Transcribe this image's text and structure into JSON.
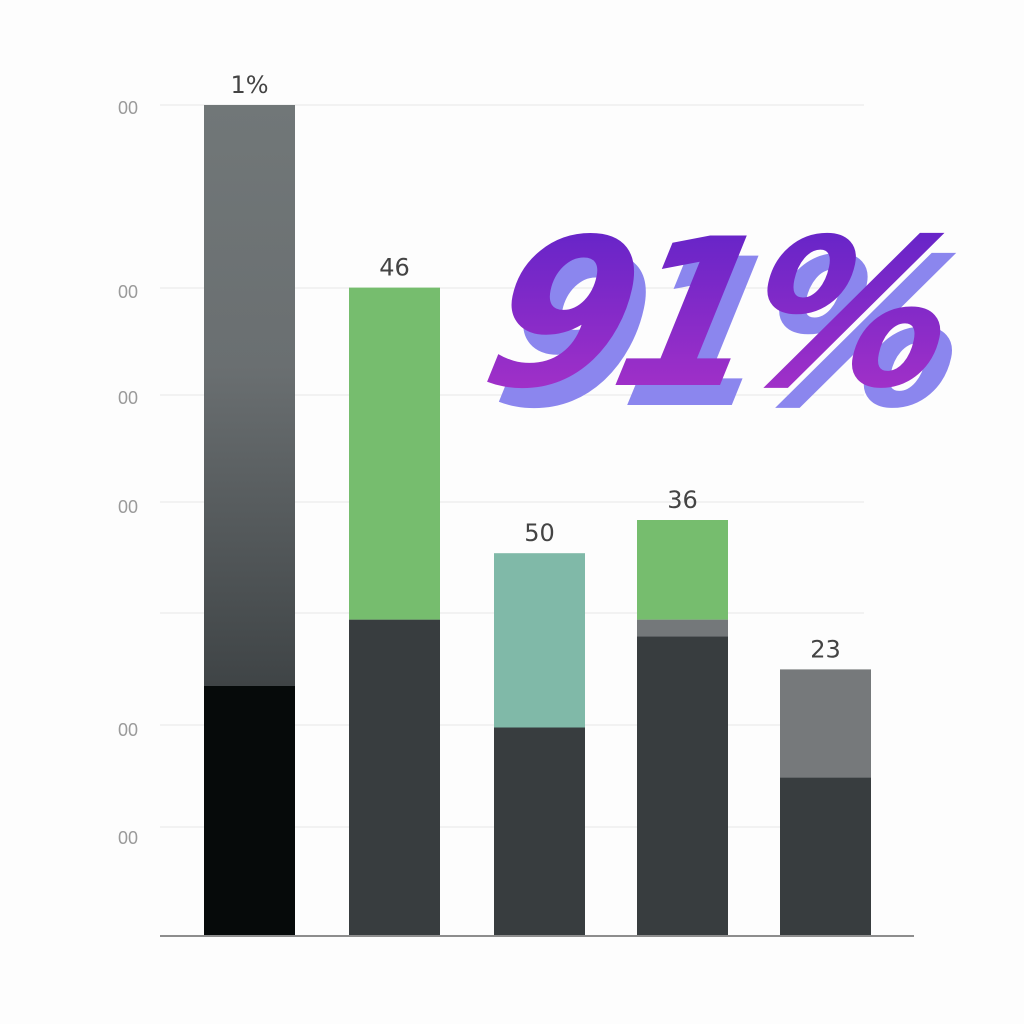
{
  "chart_data": {
    "type": "bar",
    "categories": [
      "",
      "",
      "",
      "",
      ""
    ],
    "y_tick_labels": [
      "00",
      "00",
      "00",
      "00",
      "00",
      "00"
    ],
    "data_labels": [
      "1%",
      "46",
      "50",
      "36",
      "23"
    ],
    "segments": [
      [
        {
          "from": 0,
          "to": 0.3,
          "color": "#060a0a"
        },
        {
          "from": 0.3,
          "to": 1.0,
          "color": "#6f7577"
        }
      ],
      [
        {
          "from": 0,
          "to": 0.38,
          "color": "#383d3f"
        },
        {
          "from": 0.38,
          "to": 0.78,
          "color": "#76bd6e"
        }
      ],
      [
        {
          "from": 0,
          "to": 0.25,
          "color": "#383d3f"
        },
        {
          "from": 0.25,
          "to": 0.46,
          "color": "#80b9a8"
        }
      ],
      [
        {
          "from": 0,
          "to": 0.36,
          "color": "#383d3f"
        },
        {
          "from": 0.36,
          "to": 0.38,
          "color": "#74787a"
        },
        {
          "from": 0.38,
          "to": 0.5,
          "color": "#76bd6e"
        }
      ],
      [
        {
          "from": 0,
          "to": 0.19,
          "color": "#383d3f"
        },
        {
          "from": 0.19,
          "to": 0.32,
          "color": "#76797b"
        }
      ]
    ],
    "grid": true,
    "overlay_text": "91%",
    "overlay_colors": {
      "top": "#5a22c8",
      "bottom": "#b033c8",
      "shadow": "#8b86ee"
    }
  }
}
